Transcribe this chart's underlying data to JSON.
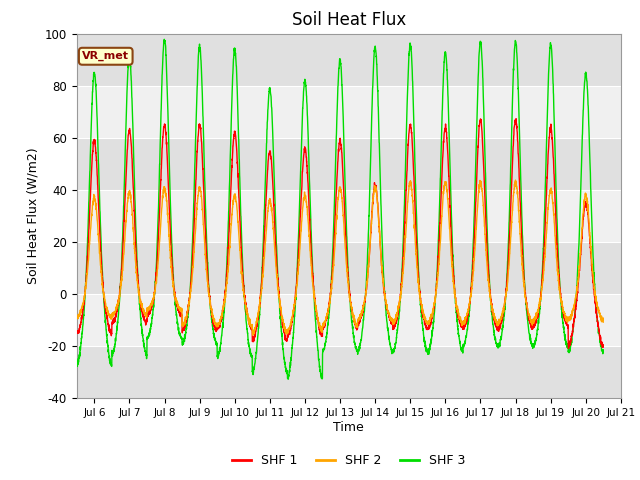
{
  "title": "Soil Heat Flux",
  "ylabel": "Soil Heat Flux (W/m2)",
  "xlabel": "Time",
  "ylim": [
    -40,
    100
  ],
  "xlim_days": [
    5.5,
    21.0
  ],
  "xtick_days": [
    6,
    7,
    8,
    9,
    10,
    11,
    12,
    13,
    14,
    15,
    16,
    17,
    18,
    19,
    20,
    21
  ],
  "xtick_labels": [
    "Jul 6",
    "Jul 7",
    "Jul 8",
    "Jul 9",
    "Jul 10",
    "Jul 11",
    "Jul 12",
    "Jul 13",
    "Jul 14",
    "Jul 15",
    "Jul 16",
    "Jul 17",
    "Jul 18",
    "Jul 19",
    "Jul 20",
    "Jul 21"
  ],
  "yticks": [
    -40,
    -20,
    0,
    20,
    40,
    60,
    80,
    100
  ],
  "shf1_color": "#ff0000",
  "shf2_color": "#ffa500",
  "shf3_color": "#00dd00",
  "fig_bg_color": "#ffffff",
  "plot_bg_color": "#f0f0f0",
  "band_color": "#e0e0e0",
  "legend_entries": [
    "SHF 1",
    "SHF 2",
    "SHF 3"
  ],
  "annotation_text": "VR_met",
  "linewidth": 1.0,
  "n_days": 15,
  "day_start": 5.5,
  "peak_shf1": [
    59,
    63,
    65,
    65,
    62,
    55,
    56,
    59,
    42,
    65,
    64,
    67,
    67,
    64,
    35
  ],
  "peak_shf2": [
    37,
    39,
    41,
    41,
    38,
    36,
    38,
    41,
    41,
    43,
    43,
    43,
    43,
    40,
    38
  ],
  "peak_shf3": [
    85,
    91,
    98,
    95,
    94,
    79,
    82,
    90,
    95,
    96,
    93,
    97,
    97,
    96,
    85
  ],
  "trough_shf1": [
    -15,
    -11,
    -8,
    -14,
    -13,
    -18,
    -16,
    -13,
    -11,
    -13,
    -13,
    -13,
    -13,
    -12,
    -20
  ],
  "trough_shf2": [
    -9,
    -8,
    -6,
    -12,
    -12,
    -15,
    -14,
    -12,
    -10,
    -11,
    -11,
    -11,
    -11,
    -10,
    -10
  ],
  "trough_shf3": [
    -27,
    -23,
    -17,
    -19,
    -24,
    -30,
    -32,
    -22,
    -22,
    -22,
    -22,
    -20,
    -20,
    -20,
    -22
  ]
}
